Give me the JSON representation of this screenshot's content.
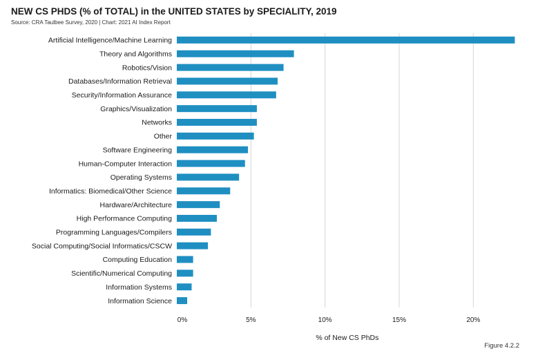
{
  "header": {
    "title": "NEW CS PHDS (% of TOTAL) in the UNITED STATES by SPECIALITY, 2019",
    "source": "Source: CRA Taulbee Survey, 2020 | Chart: 2021 AI Index Report"
  },
  "figure_label": "Figure 4.2.2",
  "chart_data": {
    "type": "bar",
    "orientation": "horizontal",
    "title": "NEW CS PHDS (% of TOTAL) in the UNITED STATES by SPECIALITY, 2019",
    "xlabel": "% of New CS PhDs",
    "ylabel": "",
    "xlim": [
      0,
      22.5
    ],
    "x_ticks": [
      0,
      5,
      10,
      15,
      20
    ],
    "x_tick_labels": [
      "0%",
      "5%",
      "10%",
      "15%",
      "20%"
    ],
    "grid": "vertical",
    "bar_color": "#1f8fc2",
    "categories": [
      "Artificial Intelligence/Machine Learning",
      "Theory and Algorithms",
      "Robotics/Vision",
      "Databases/Information Retrieval",
      "Security/Information Assurance",
      "Graphics/Visualization",
      "Networks",
      "Other",
      "Software Engineering",
      "Human-Computer Interaction",
      "Operating Systems",
      "Informatics: Biomedical/Other Science",
      "Hardware/Architecture",
      "High Performance Computing",
      "Programming Languages/Compilers",
      "Social Computing/Social Informatics/CSCW",
      "Computing Education",
      "Scientific/Numerical Computing",
      "Information Systems",
      "Information Science"
    ],
    "values": [
      22.8,
      7.9,
      7.2,
      6.8,
      6.7,
      5.4,
      5.4,
      5.2,
      4.8,
      4.6,
      4.2,
      3.6,
      2.9,
      2.7,
      2.3,
      2.1,
      1.1,
      1.1,
      1.0,
      0.7
    ]
  }
}
